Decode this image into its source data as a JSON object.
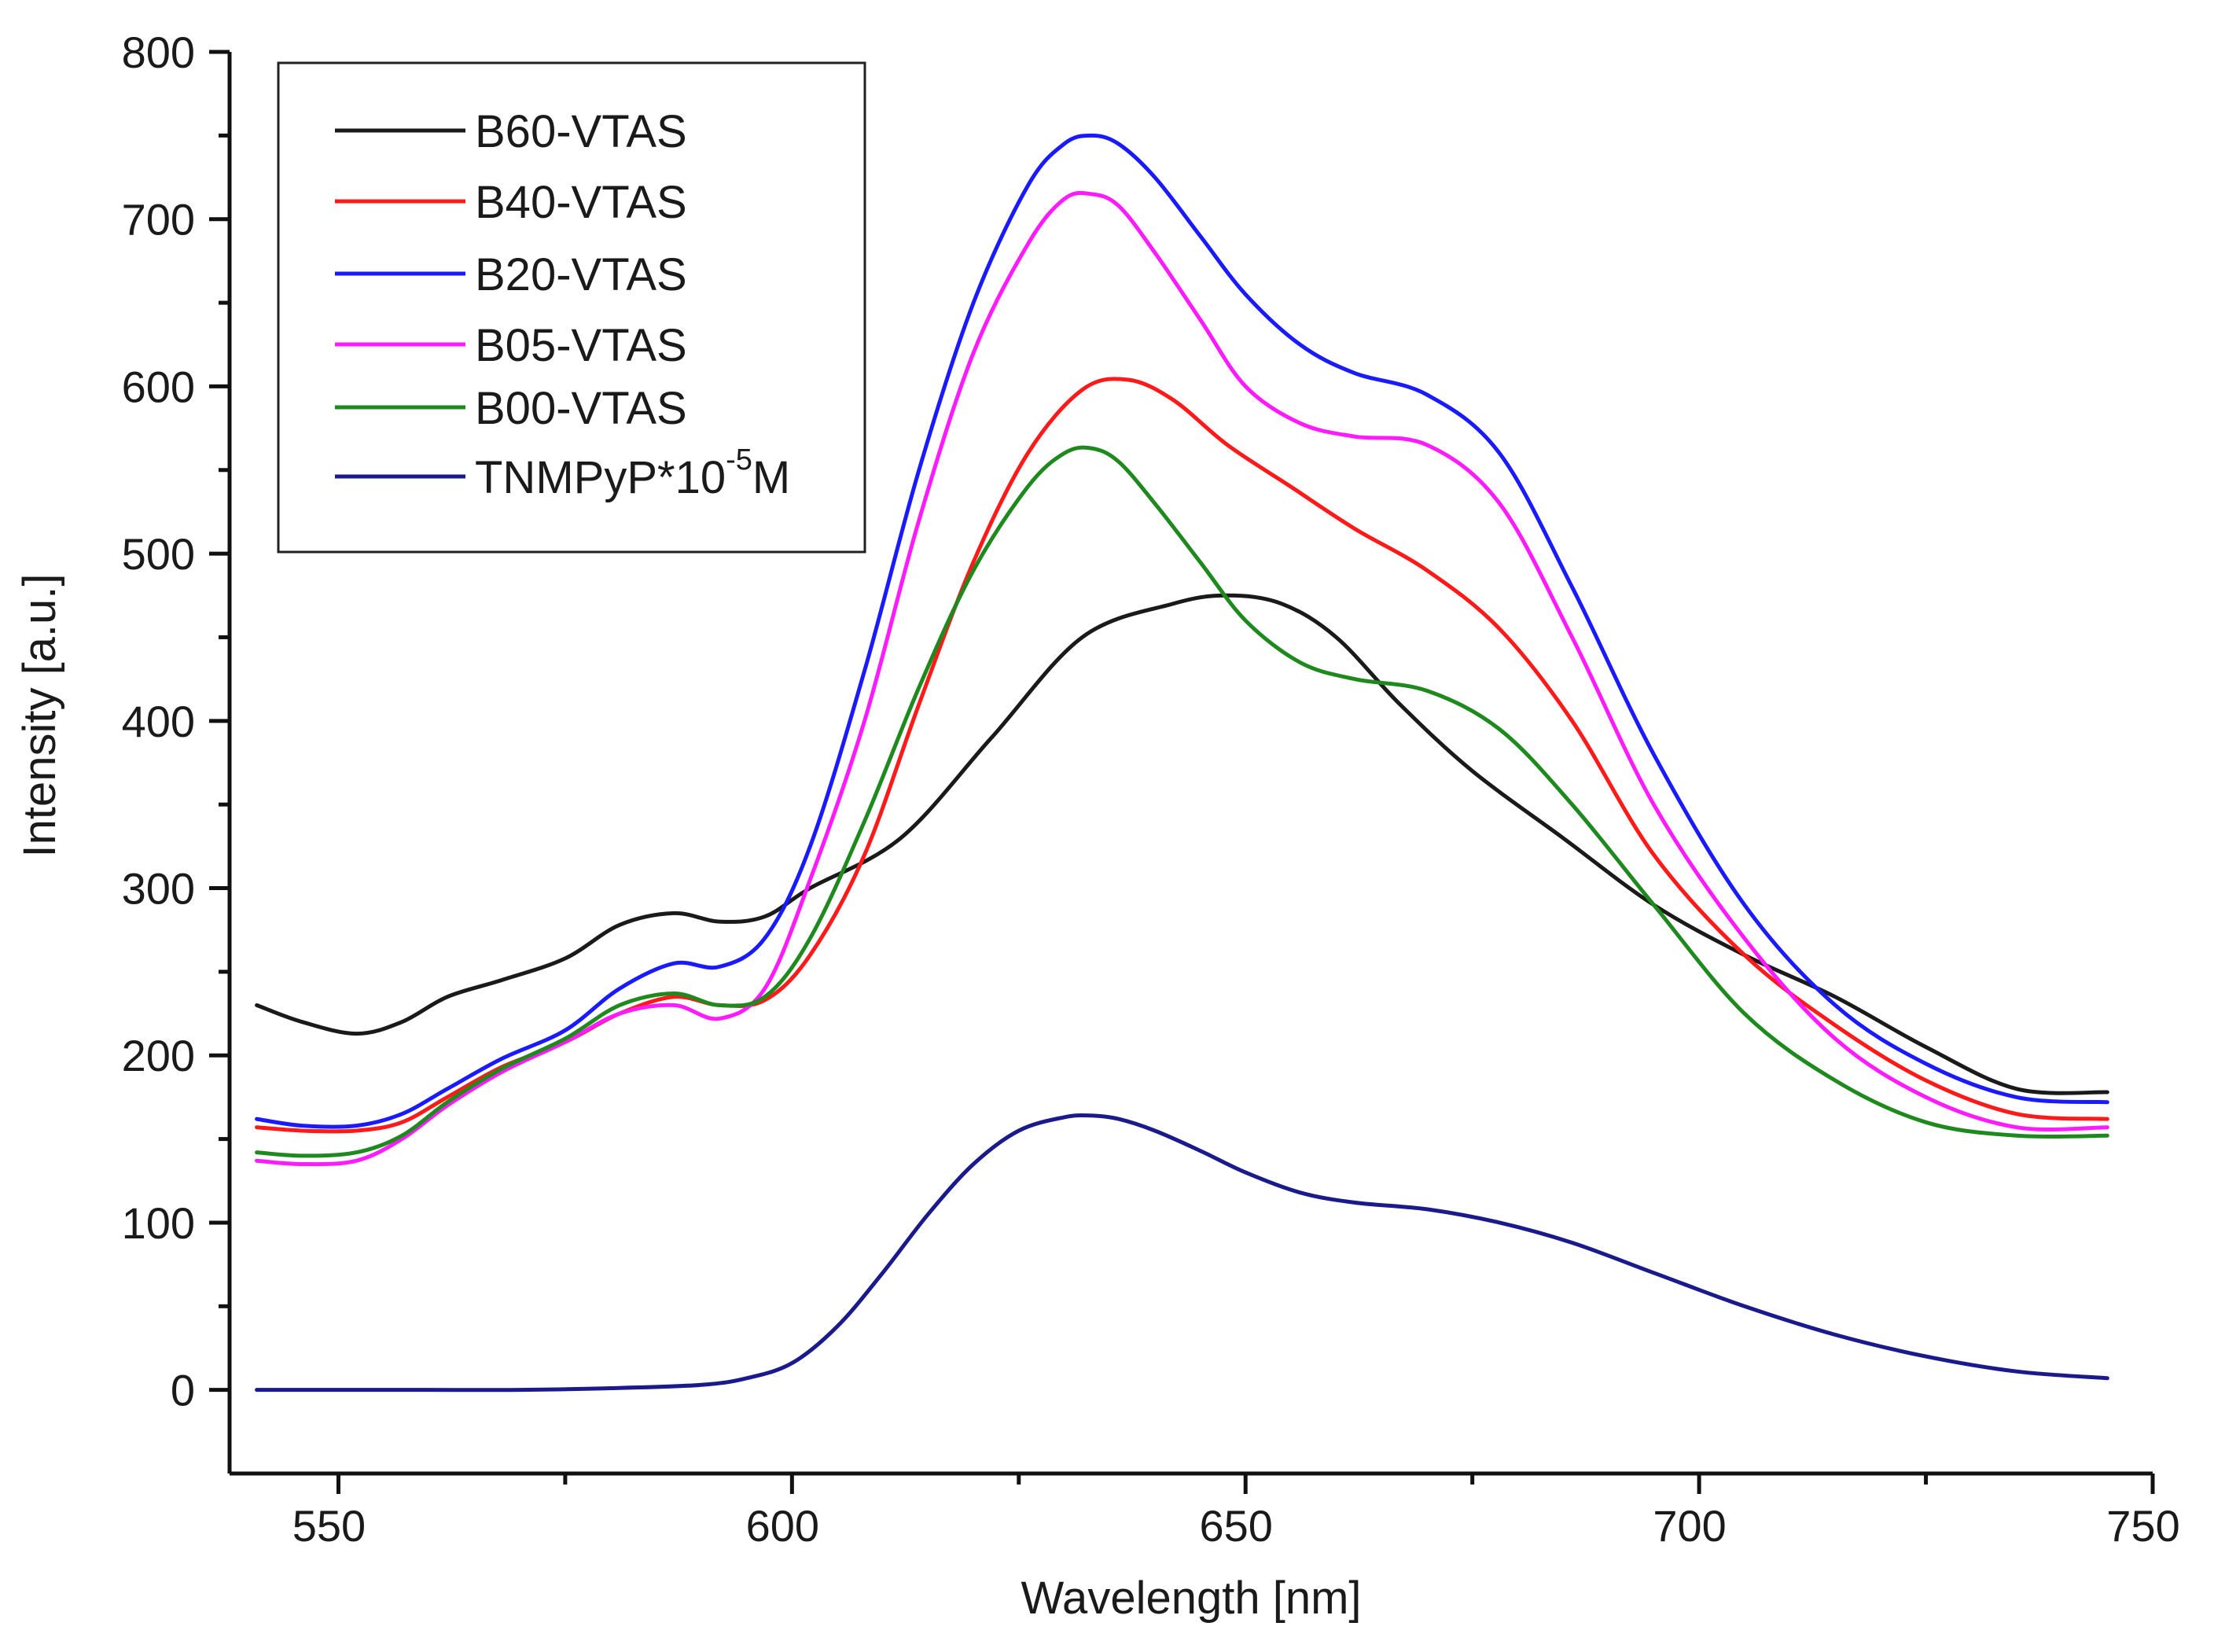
{
  "chart_data": {
    "type": "line",
    "title": "",
    "xlabel": "Wavelength [nm]",
    "ylabel": "Intensity [a.u.]",
    "xlim": [
      538,
      750
    ],
    "ylim": [
      -50,
      800
    ],
    "xticks": [
      550,
      600,
      650,
      700,
      750
    ],
    "yticks": [
      0,
      100,
      200,
      300,
      400,
      500,
      600,
      700,
      800
    ],
    "xminor_step": 25,
    "yminor_step": 50,
    "legend_position": "top-left",
    "series": [
      {
        "name": "B60-VTAS",
        "legend_label": "B60-VTAS",
        "color": "#1a1a1a",
        "x": [
          541,
          546,
          552,
          557,
          562,
          568,
          575,
          581,
          587,
          592,
          597,
          602,
          612,
          622,
          632,
          642,
          648,
          654,
          660,
          667,
          675,
          685,
          695,
          705,
          715,
          725,
          735,
          745
        ],
        "y": [
          230,
          220,
          213,
          220,
          235,
          245,
          258,
          278,
          285,
          280,
          283,
          300,
          330,
          390,
          450,
          470,
          475,
          470,
          450,
          410,
          370,
          330,
          290,
          260,
          235,
          205,
          180,
          178
        ]
      },
      {
        "name": "B40-VTAS",
        "legend_label": "B40-VTAS",
        "color": "#ff1a1a",
        "x": [
          541,
          546,
          552,
          557,
          562,
          568,
          575,
          581,
          587,
          592,
          597,
          602,
          608,
          614,
          620,
          626,
          632,
          637,
          642,
          648,
          655,
          662,
          670,
          678,
          686,
          695,
          705,
          715,
          725,
          735,
          745
        ],
        "y": [
          157,
          155,
          155,
          160,
          175,
          193,
          208,
          225,
          235,
          230,
          233,
          260,
          320,
          410,
          495,
          560,
          598,
          604,
          592,
          565,
          540,
          515,
          490,
          455,
          400,
          320,
          260,
          218,
          185,
          165,
          162
        ]
      },
      {
        "name": "B20-VTAS",
        "legend_label": "B20-VTAS",
        "color": "#1a1aff",
        "x": [
          541,
          546,
          552,
          557,
          562,
          568,
          575,
          581,
          587,
          592,
          597,
          602,
          608,
          614,
          620,
          626,
          630,
          633,
          636,
          640,
          645,
          650,
          656,
          662,
          670,
          678,
          686,
          695,
          705,
          715,
          725,
          735,
          745
        ],
        "y": [
          162,
          158,
          158,
          165,
          180,
          198,
          215,
          240,
          255,
          253,
          270,
          325,
          430,
          550,
          650,
          720,
          745,
          750,
          745,
          725,
          690,
          655,
          625,
          608,
          595,
          560,
          480,
          380,
          290,
          230,
          195,
          175,
          172
        ]
      },
      {
        "name": "B05-VTAS",
        "legend_label": "B05-VTAS",
        "color": "#ff1aff",
        "x": [
          541,
          546,
          552,
          557,
          562,
          568,
          575,
          581,
          587,
          592,
          597,
          602,
          608,
          614,
          620,
          626,
          630,
          633,
          636,
          640,
          645,
          650,
          656,
          662,
          670,
          678,
          686,
          695,
          705,
          715,
          725,
          735,
          745
        ],
        "y": [
          137,
          135,
          137,
          150,
          170,
          190,
          208,
          225,
          230,
          222,
          240,
          305,
          400,
          520,
          620,
          685,
          712,
          715,
          708,
          680,
          640,
          600,
          578,
          570,
          565,
          530,
          450,
          350,
          270,
          210,
          175,
          157,
          157
        ]
      },
      {
        "name": "B00-VTAS",
        "legend_label": "B00-VTAS",
        "color": "#1e8a1e",
        "x": [
          541,
          546,
          552,
          557,
          562,
          568,
          575,
          581,
          587,
          592,
          597,
          602,
          608,
          614,
          620,
          626,
          630,
          633,
          636,
          640,
          645,
          650,
          656,
          662,
          670,
          678,
          686,
          695,
          705,
          715,
          725,
          735,
          745
        ],
        "y": [
          142,
          140,
          142,
          152,
          172,
          192,
          210,
          230,
          237,
          230,
          235,
          270,
          340,
          420,
          490,
          540,
          560,
          563,
          555,
          530,
          495,
          460,
          435,
          425,
          418,
          395,
          350,
          290,
          225,
          185,
          160,
          152,
          152
        ]
      },
      {
        "name": "TNMPyP*10^-5M",
        "legend_label": "TNMPyP*10",
        "legend_superscript": "-5",
        "legend_suffix": "M",
        "color": "#1a1a8c",
        "x": [
          541,
          550,
          560,
          570,
          580,
          590,
          595,
          600,
          605,
          610,
          615,
          620,
          625,
          630,
          633,
          636,
          640,
          645,
          650,
          656,
          662,
          670,
          678,
          686,
          695,
          705,
          715,
          725,
          735,
          745
        ],
        "y": [
          0,
          0,
          0,
          0,
          1,
          3,
          7,
          16,
          38,
          70,
          105,
          135,
          155,
          163,
          164,
          162,
          155,
          143,
          130,
          118,
          112,
          108,
          100,
          88,
          70,
          50,
          33,
          20,
          11,
          7
        ]
      }
    ]
  }
}
